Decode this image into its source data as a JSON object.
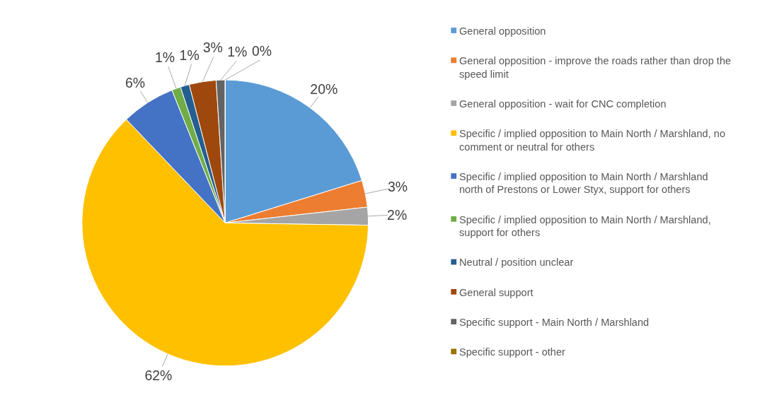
{
  "chart_data": {
    "type": "pie",
    "categories": [
      "General opposition",
      "General opposition - improve the roads rather than drop the speed limit",
      "General opposition - wait for CNC completion",
      "Specific / implied opposition to Main North / Marshland, no comment or neutral for others",
      "Specific / implied opposition to Main North / Marshland north of Prestons or Lower Styx, support for others",
      "Specific / implied opposition to Main North / Marshland, support for others",
      "Neutral / position unclear",
      "General support",
      "Specific support - Main North / Marshland",
      "Specific support - other"
    ],
    "values": [
      20,
      3,
      2,
      62,
      6,
      1,
      1,
      3,
      1,
      0
    ],
    "colors": [
      "#5b9bd5",
      "#ed7d31",
      "#a5a5a5",
      "#ffc000",
      "#4472c4",
      "#70ad47",
      "#255e91",
      "#9e480e",
      "#636363",
      "#997300"
    ],
    "value_labels": [
      "20%",
      "3%",
      "2%",
      "62%",
      "6%",
      "1%",
      "1%",
      "3%",
      "1%",
      "0%"
    ],
    "legend": "right"
  }
}
